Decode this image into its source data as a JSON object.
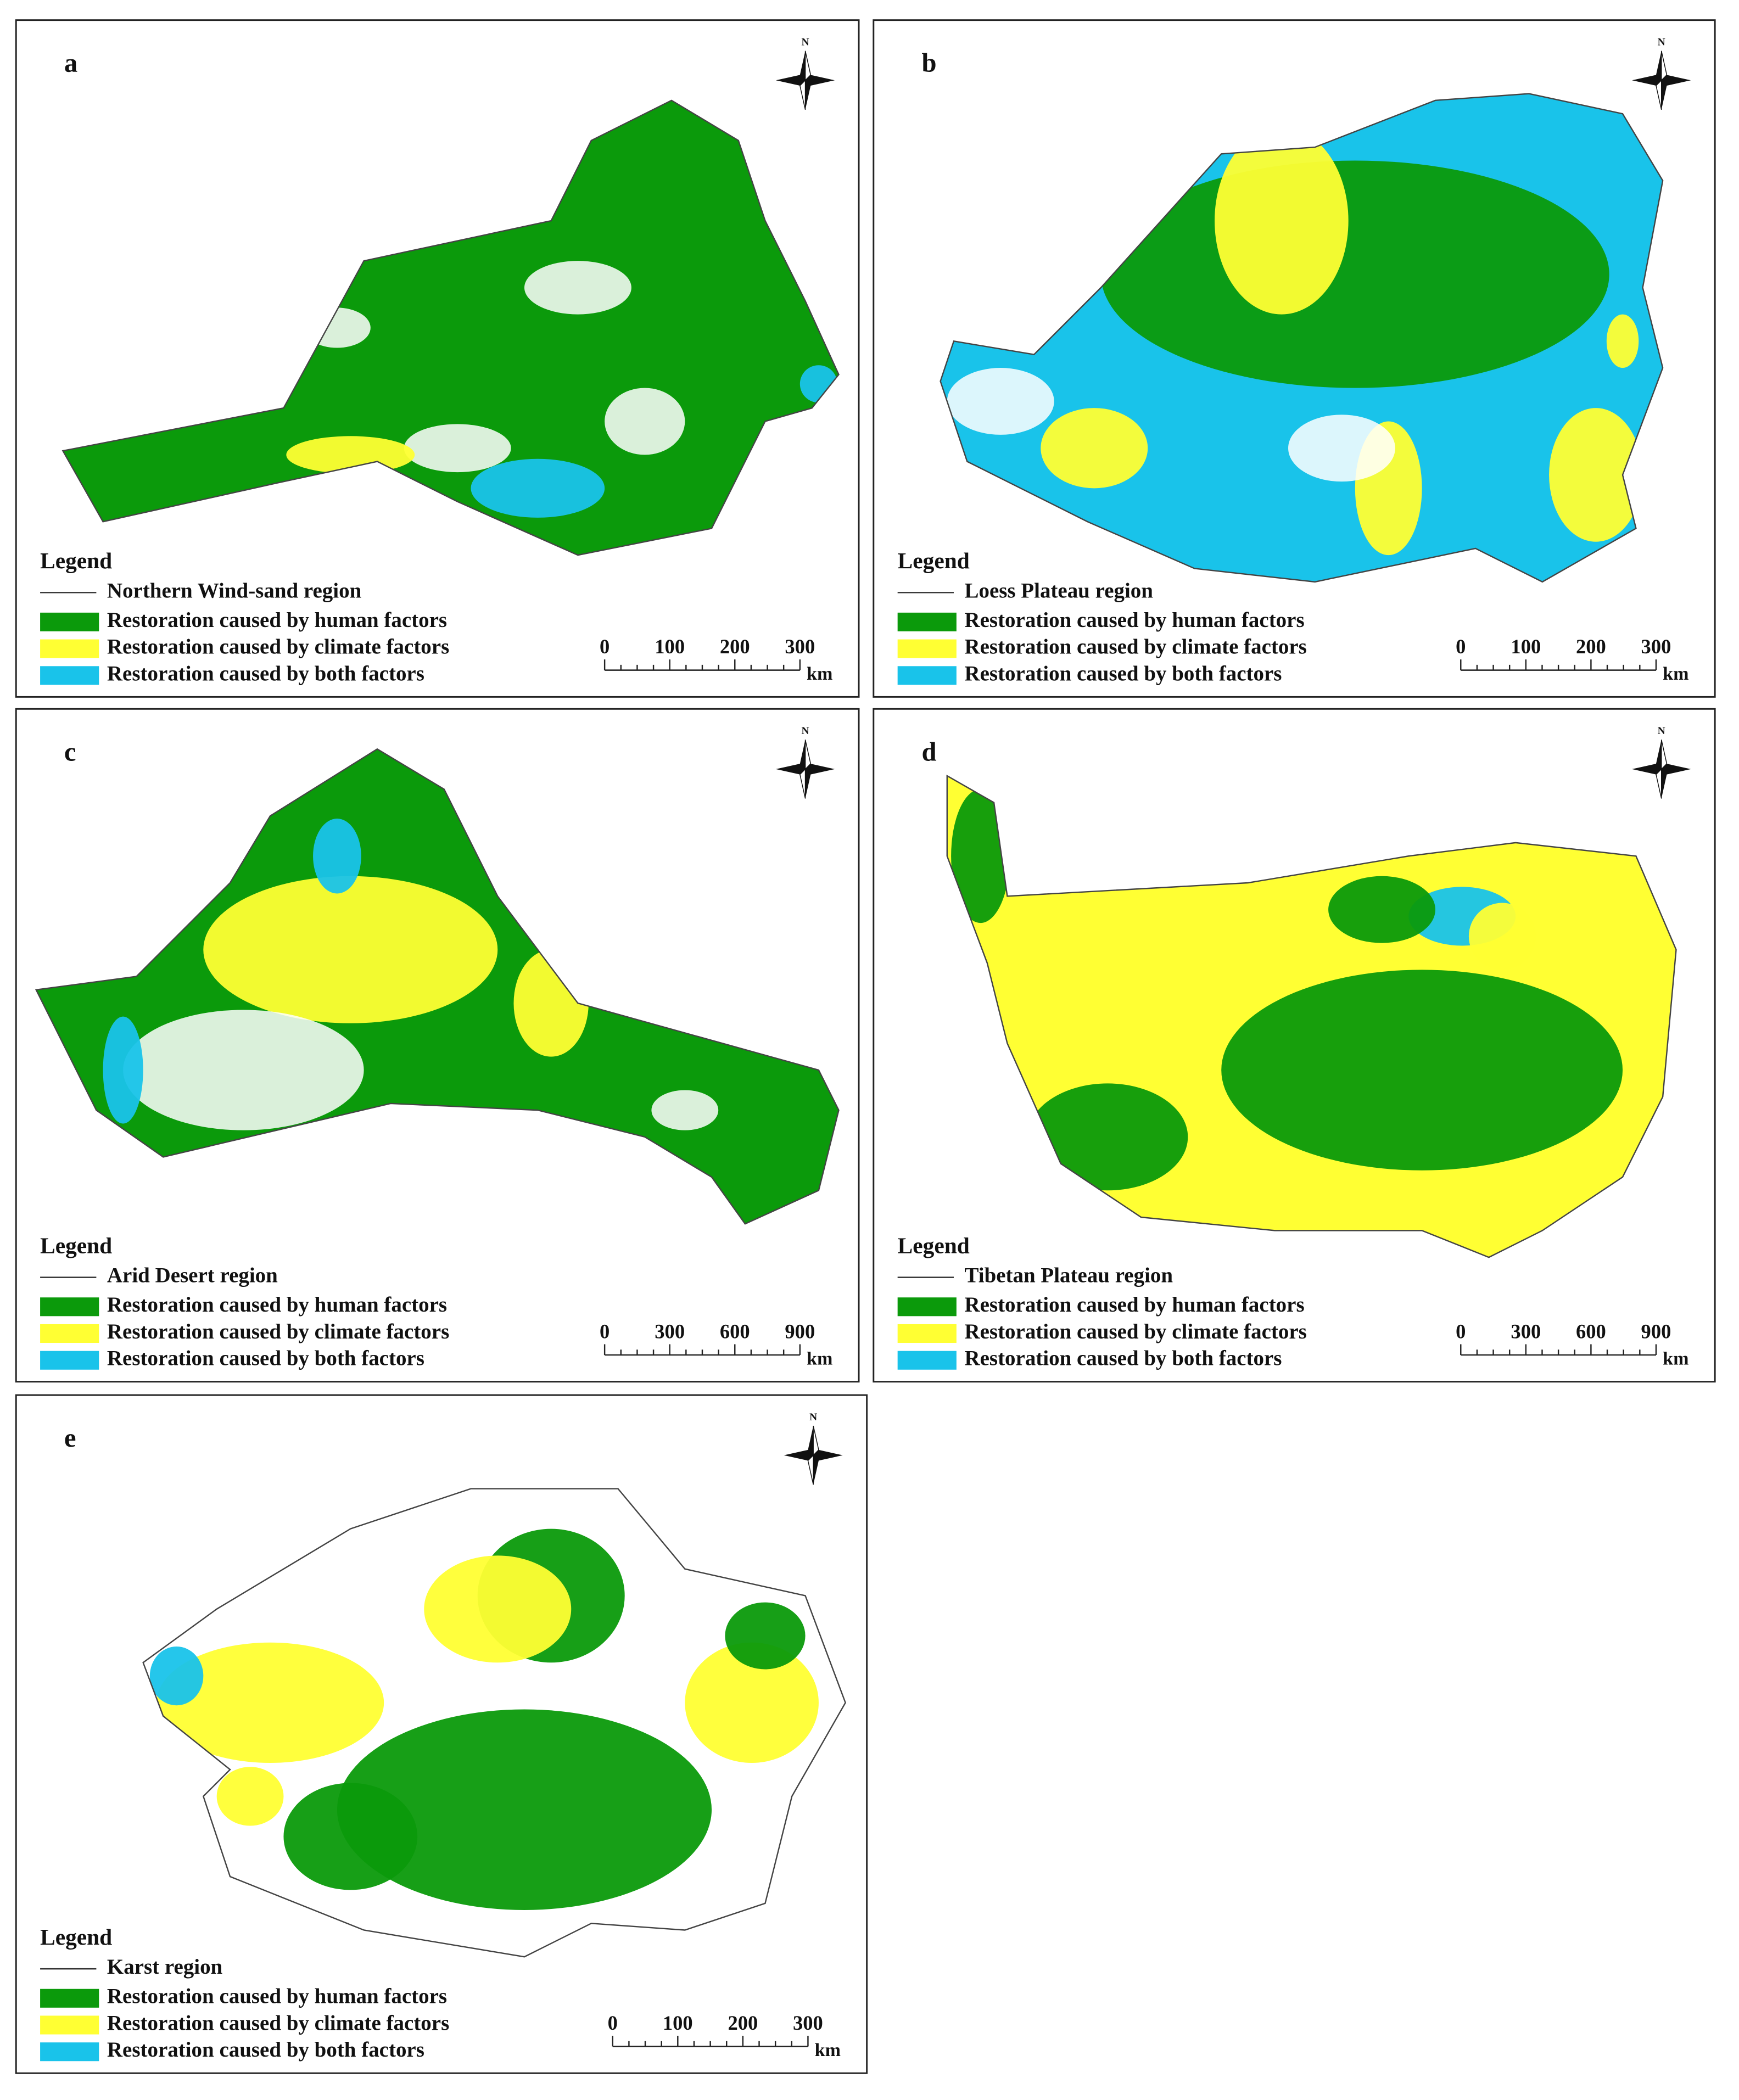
{
  "panels": [
    {
      "label": "a",
      "legend_title": "Legend",
      "region": "Northern Wind-sand region",
      "legend_items": [
        {
          "label": "Restoration caused by human factors",
          "color": "#0b9a0b"
        },
        {
          "label": "Restoration caused by climate factors",
          "color": "#ffff33"
        },
        {
          "label": "Restoration caused by both factors",
          "color": "#19c3ea"
        }
      ],
      "scale_labels": [
        "0",
        "100",
        "200",
        "300"
      ],
      "scale_unit": "km",
      "north": "N"
    },
    {
      "label": "b",
      "legend_title": "Legend",
      "region": "Loess Plateau region",
      "legend_items": [
        {
          "label": "Restoration caused by human factors",
          "color": "#0b9a0b"
        },
        {
          "label": "Restoration caused by climate factors",
          "color": "#ffff33"
        },
        {
          "label": "Restoration caused by both factors",
          "color": "#19c3ea"
        }
      ],
      "scale_labels": [
        "0",
        "100",
        "200",
        "300"
      ],
      "scale_unit": "km",
      "north": "N"
    },
    {
      "label": "c",
      "legend_title": "Legend",
      "region": "Arid Desert region",
      "legend_items": [
        {
          "label": "Restoration caused by human factors",
          "color": "#0b9a0b"
        },
        {
          "label": "Restoration caused by climate factors",
          "color": "#ffff33"
        },
        {
          "label": "Restoration caused by both factors",
          "color": "#19c3ea"
        }
      ],
      "scale_labels": [
        "0",
        "300",
        "600",
        "900"
      ],
      "scale_unit": "km",
      "north": "N"
    },
    {
      "label": "d",
      "legend_title": "Legend",
      "region": "Tibetan Plateau region",
      "legend_items": [
        {
          "label": "Restoration caused by human factors",
          "color": "#0b9a0b"
        },
        {
          "label": "Restoration caused by climate factors",
          "color": "#ffff33"
        },
        {
          "label": "Restoration caused by both factors",
          "color": "#19c3ea"
        }
      ],
      "scale_labels": [
        "0",
        "300",
        "600",
        "900"
      ],
      "scale_unit": "km",
      "north": "N"
    },
    {
      "label": "e",
      "legend_title": "Legend",
      "region": "Karst region",
      "legend_items": [
        {
          "label": "Restoration caused by human factors",
          "color": "#0b9a0b"
        },
        {
          "label": "Restoration caused by climate factors",
          "color": "#ffff33"
        },
        {
          "label": "Restoration caused by both factors",
          "color": "#19c3ea"
        }
      ],
      "scale_labels": [
        "0",
        "100",
        "200",
        "300"
      ],
      "scale_unit": "km",
      "north": "N"
    }
  ]
}
